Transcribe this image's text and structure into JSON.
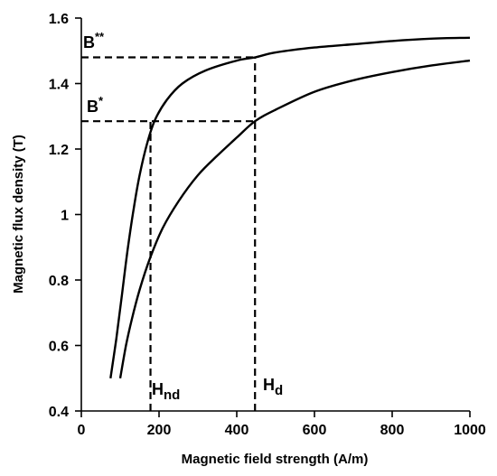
{
  "chart_data": {
    "type": "line",
    "xlabel": "Magnetic field strength (A/m)",
    "ylabel": "Magnetic flux density (T)",
    "xlim": [
      0,
      1000
    ],
    "ylim": [
      0.4,
      1.6
    ],
    "x_ticks": [
      0,
      200,
      400,
      600,
      800,
      1000
    ],
    "y_ticks": [
      0.4,
      0.6,
      0.8,
      1,
      1.2,
      1.4,
      1.6
    ],
    "x_tick_labels": [
      "0",
      "200",
      "400",
      "600",
      "800",
      "1000"
    ],
    "y_tick_labels": [
      "0.4",
      "0.6",
      "0.8",
      "1",
      "1.2",
      "1.4",
      "1.6"
    ],
    "grid": false,
    "series": [
      {
        "points": [
          [
            75,
            0.5
          ],
          [
            90,
            0.62
          ],
          [
            105,
            0.76
          ],
          [
            120,
            0.9
          ],
          [
            135,
            1.02
          ],
          [
            150,
            1.12
          ],
          [
            170,
            1.22
          ],
          [
            190,
            1.29
          ],
          [
            220,
            1.35
          ],
          [
            260,
            1.4
          ],
          [
            320,
            1.44
          ],
          [
            400,
            1.47
          ],
          [
            447,
            1.48
          ],
          [
            500,
            1.495
          ],
          [
            600,
            1.51
          ],
          [
            700,
            1.52
          ],
          [
            800,
            1.53
          ],
          [
            900,
            1.537
          ],
          [
            1000,
            1.54
          ]
        ]
      },
      {
        "points": [
          [
            100,
            0.5
          ],
          [
            115,
            0.6
          ],
          [
            130,
            0.68
          ],
          [
            150,
            0.77
          ],
          [
            178,
            0.87
          ],
          [
            210,
            0.96
          ],
          [
            250,
            1.04
          ],
          [
            300,
            1.12
          ],
          [
            350,
            1.18
          ],
          [
            400,
            1.235
          ],
          [
            447,
            1.285
          ],
          [
            500,
            1.32
          ],
          [
            600,
            1.375
          ],
          [
            700,
            1.41
          ],
          [
            800,
            1.435
          ],
          [
            900,
            1.455
          ],
          [
            1000,
            1.47
          ]
        ]
      }
    ],
    "reference_lines": [
      {
        "label": "B**",
        "y": 1.48,
        "x_end": 447
      },
      {
        "label": "B*",
        "y": 1.285,
        "x_end": 447
      },
      {
        "label": "Hnd",
        "x": 178,
        "y_end": 1.285
      },
      {
        "label": "Hd",
        "x": 447,
        "y_end": 1.48
      }
    ],
    "annotations": {
      "b_double_star": {
        "base": "B",
        "sup": "**"
      },
      "b_star": {
        "base": "B",
        "sup": "*"
      },
      "h_nd": {
        "base": "H",
        "sub": "nd"
      },
      "h_d": {
        "base": "H",
        "sub": "d"
      }
    }
  }
}
